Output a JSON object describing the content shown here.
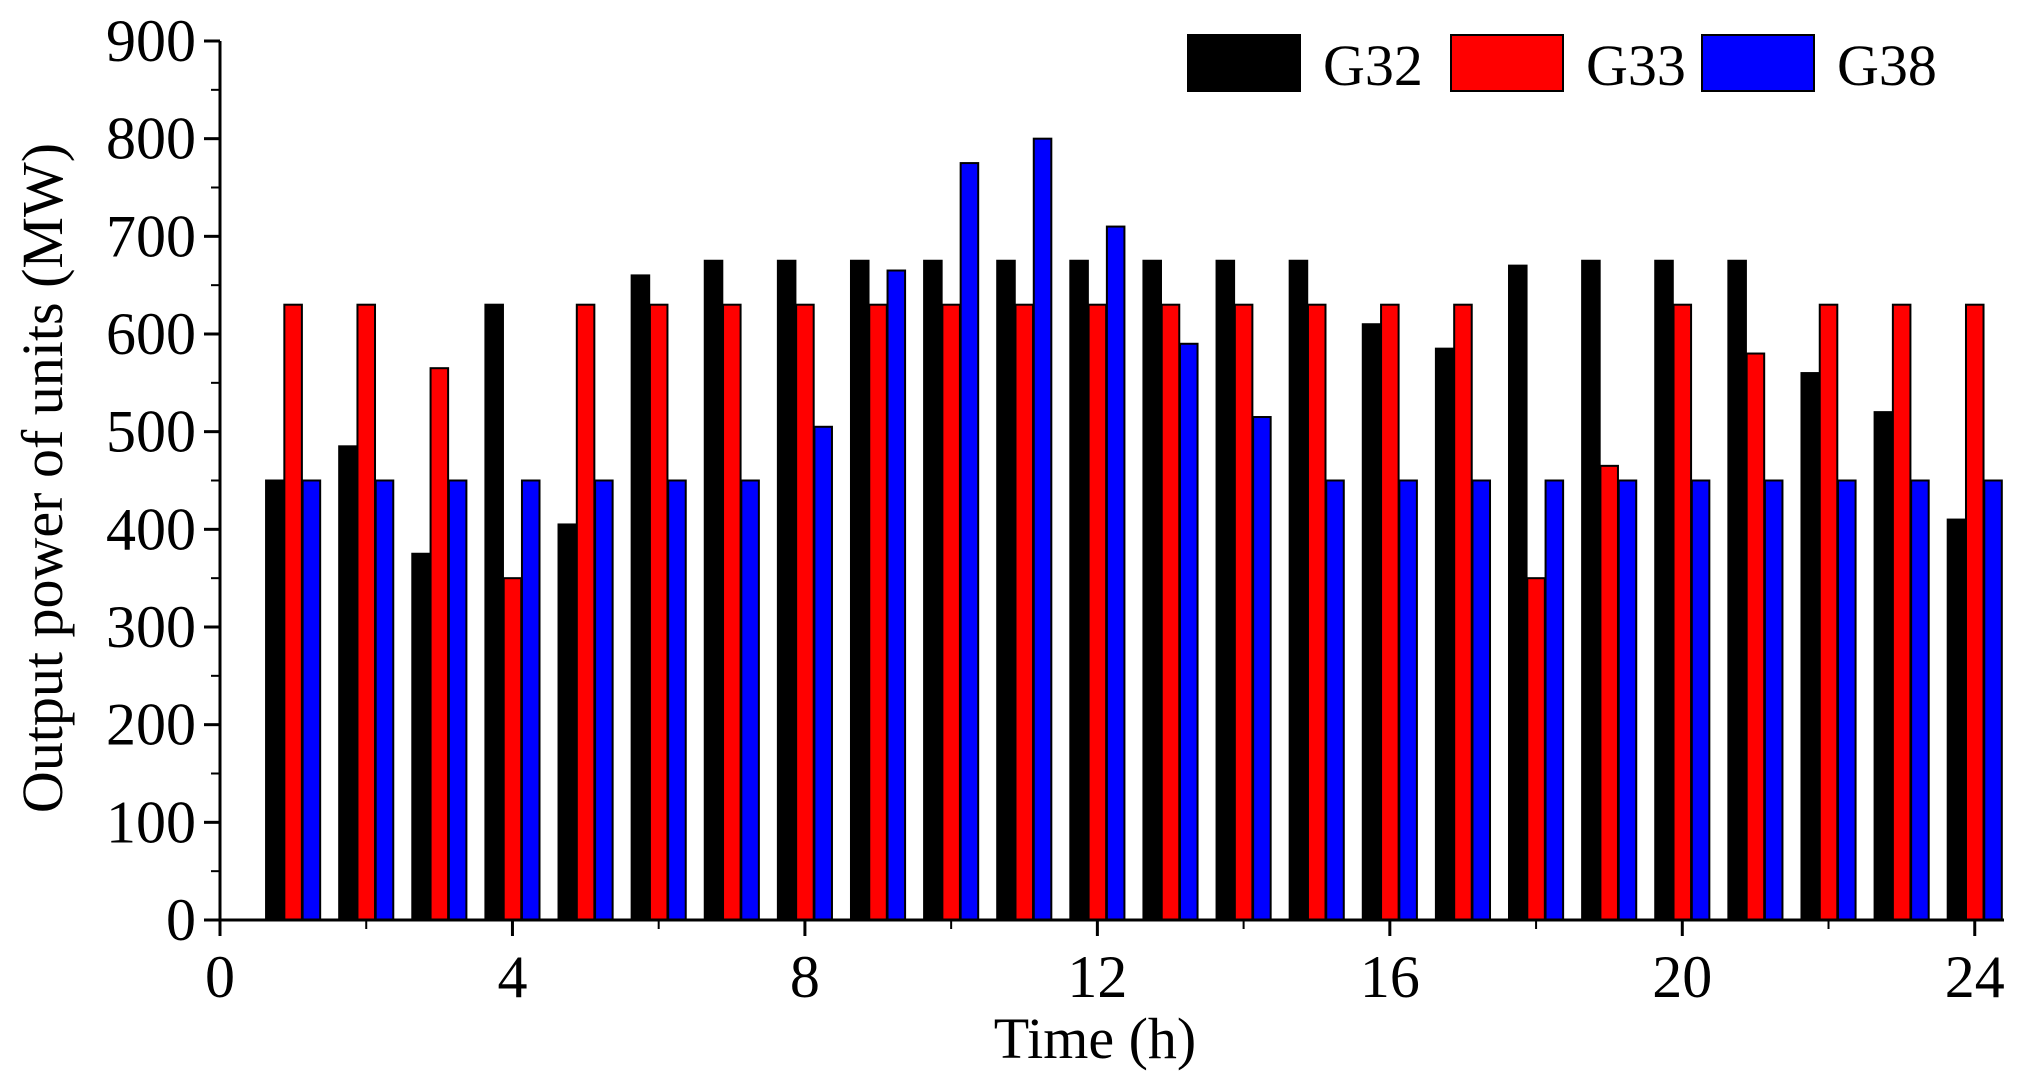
{
  "chart_data": {
    "type": "bar",
    "title": "",
    "xlabel": "Time (h)",
    "ylabel": "Output power of units (MW)",
    "xlim": [
      0,
      24.4
    ],
    "ylim": [
      0,
      900
    ],
    "x_ticks": [
      0,
      4,
      8,
      12,
      16,
      20,
      24
    ],
    "y_ticks": [
      0,
      100,
      200,
      300,
      400,
      500,
      600,
      700,
      800,
      900
    ],
    "grid": false,
    "legend_position": "top-right",
    "categories": [
      1,
      2,
      3,
      4,
      5,
      6,
      7,
      8,
      9,
      10,
      11,
      12,
      13,
      14,
      15,
      16,
      17,
      18,
      19,
      20,
      21,
      22,
      23,
      24
    ],
    "series": [
      {
        "name": "G32",
        "color": "#000000",
        "values": [
          450,
          485,
          375,
          630,
          405,
          660,
          675,
          675,
          675,
          675,
          675,
          675,
          675,
          675,
          675,
          610,
          585,
          670,
          675,
          675,
          675,
          560,
          520,
          410
        ]
      },
      {
        "name": "G33",
        "color": "#ff0000",
        "values": [
          630,
          630,
          565,
          350,
          630,
          630,
          630,
          630,
          630,
          630,
          630,
          630,
          630,
          630,
          630,
          630,
          630,
          350,
          465,
          630,
          580,
          630,
          630,
          630
        ]
      },
      {
        "name": "G38",
        "color": "#0000ff",
        "values": [
          450,
          450,
          450,
          450,
          450,
          450,
          450,
          505,
          665,
          775,
          800,
          710,
          590,
          515,
          450,
          450,
          450,
          450,
          450,
          450,
          450,
          450,
          450,
          450
        ]
      }
    ]
  }
}
